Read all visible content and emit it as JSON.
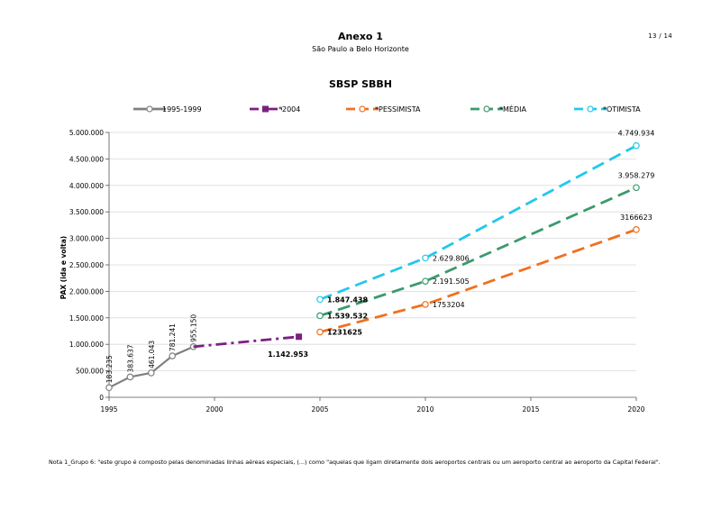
{
  "page": {
    "page_number": "13 / 14",
    "title": "Anexo 1",
    "subtitle": "São Paulo a Belo Horizonte",
    "footnote": "Nota 1_Grupo 6: \"este grupo é composto pelas denominadas linhas aéreas especiais, (...) como \"aquelas que ligam diretamente dois aeroportos centrais ou um aeroporto central ao aeroporto da Capital Federal\"."
  },
  "chart_data": {
    "type": "line",
    "title": "SBSP SBBH",
    "xlabel": "",
    "ylabel": "PAX (ida e volta)",
    "xlim": [
      1995,
      2020
    ],
    "ylim": [
      0,
      5000000
    ],
    "xticks": [
      "1995",
      "2000",
      "2005",
      "2010",
      "2015",
      "2020"
    ],
    "yticks": [
      "0",
      "500.000",
      "1.000.000",
      "1.500.000",
      "2.000.000",
      "2.500.000",
      "3.000.000",
      "3.500.000",
      "4.000.000",
      "4.500.000",
      "5.000.000"
    ],
    "grid": "horizontal",
    "legend_position": "top",
    "series": [
      {
        "name": "1995-1999",
        "color": "#808080",
        "dash": "solid",
        "marker": "circle",
        "x": [
          1995,
          1996,
          1997,
          1998,
          1999
        ],
        "values": [
          183235,
          383637,
          461043,
          781241,
          955150
        ],
        "labels": [
          "183.235",
          "383.637",
          "461.043",
          "781.241",
          "955.150"
        ]
      },
      {
        "name": "*2004",
        "color": "#7B1F82",
        "dash": "dashdot",
        "marker": "square",
        "x": [
          1999,
          2004
        ],
        "values": [
          955150,
          1142953
        ],
        "labels": [
          "",
          "1.142.953"
        ]
      },
      {
        "name": "*PESSIMISTA",
        "color": "#F07020",
        "dash": "dash",
        "marker": "circle",
        "x": [
          2005,
          2010,
          2020
        ],
        "values": [
          1231625,
          1753204,
          3166623
        ],
        "labels": [
          "1231625",
          "1753204",
          "3166623"
        ]
      },
      {
        "name": "*MÉDIA",
        "color": "#3A9A6C",
        "dash": "dash",
        "marker": "circle",
        "x": [
          2005,
          2010,
          2020
        ],
        "values": [
          1539532,
          2191505,
          3958279
        ],
        "labels": [
          "1.539.532",
          "2.191.505",
          "3.958.279"
        ]
      },
      {
        "name": "*OTIMISTA",
        "color": "#22C8EC",
        "dash": "dash",
        "marker": "circle",
        "x": [
          2005,
          2010,
          2020
        ],
        "values": [
          1847438,
          2629806,
          4749934
        ],
        "labels": [
          "1.847.438",
          "2.629.806",
          "4.749.934"
        ]
      }
    ]
  }
}
